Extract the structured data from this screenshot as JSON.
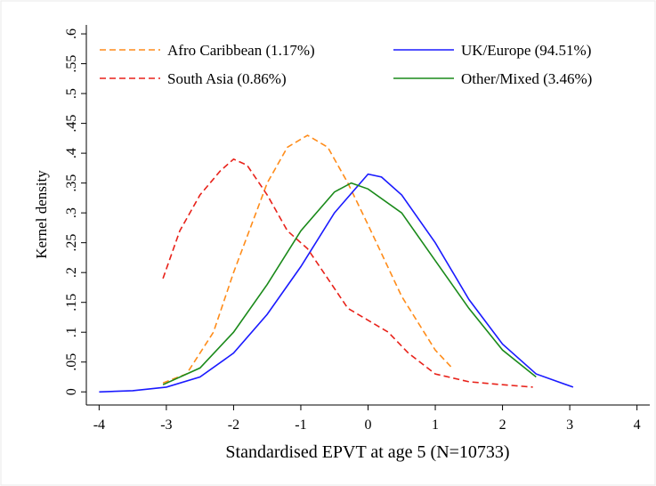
{
  "chart_data": {
    "type": "line",
    "xlabel": "Standardised EPVT at age 5 (N=10733)",
    "ylabel": "Kernel density",
    "xlim": [
      -4.19,
      4.19
    ],
    "ylim": [
      -0.022,
      0.615
    ],
    "xticks": [
      -4,
      -3,
      -2,
      -1,
      0,
      1,
      2,
      3,
      4
    ],
    "yticks": [
      0,
      {
        "value": 0.05,
        "label": ".05"
      },
      {
        "value": 0.1,
        "label": ".1"
      },
      {
        "value": 0.15,
        "label": ".15"
      },
      {
        "value": 0.2,
        "label": ".2"
      },
      {
        "value": 0.25,
        "label": ".25"
      },
      {
        "value": 0.3,
        "label": ".3"
      },
      {
        "value": 0.35,
        "label": ".35"
      },
      {
        "value": 0.4,
        "label": ".4"
      },
      {
        "value": 0.45,
        "label": ".45"
      },
      {
        "value": 0.5,
        "label": ".5"
      },
      {
        "value": 0.55,
        "label": ".55"
      },
      {
        "value": 0.6,
        "label": ".6"
      }
    ],
    "series": [
      {
        "name": "Afro Caribbean (1.17%)",
        "color": "#ff8c1a",
        "dashed": true,
        "x": [
          -3.05,
          -2.7,
          -2.3,
          -2,
          -1.5,
          -1.2,
          -0.9,
          -0.6,
          -0.3,
          0,
          0.5,
          1,
          1.25
        ],
        "values": [
          0.015,
          0.03,
          0.1,
          0.2,
          0.35,
          0.41,
          0.43,
          0.41,
          0.35,
          0.28,
          0.16,
          0.07,
          0.04
        ]
      },
      {
        "name": "UK/Europe (94.51%)",
        "color": "#1a1aff",
        "dashed": false,
        "x": [
          -4,
          -3.5,
          -3,
          -2.5,
          -2,
          -1.5,
          -1,
          -0.5,
          0,
          0.2,
          0.5,
          1,
          1.5,
          2,
          2.5,
          3.05
        ],
        "values": [
          0.0,
          0.002,
          0.008,
          0.025,
          0.065,
          0.13,
          0.21,
          0.3,
          0.365,
          0.36,
          0.33,
          0.25,
          0.155,
          0.08,
          0.03,
          0.008
        ]
      },
      {
        "name": "South Asia (0.86%)",
        "color": "#e8221a",
        "dashed": true,
        "x": [
          -3.05,
          -2.8,
          -2.5,
          -2.2,
          -2,
          -1.8,
          -1.5,
          -1.2,
          -0.9,
          -0.6,
          -0.3,
          0,
          0.3,
          0.6,
          1,
          1.5,
          2,
          2.45
        ],
        "values": [
          0.19,
          0.27,
          0.33,
          0.37,
          0.39,
          0.38,
          0.33,
          0.27,
          0.24,
          0.19,
          0.14,
          0.12,
          0.1,
          0.065,
          0.03,
          0.017,
          0.012,
          0.008
        ]
      },
      {
        "name": "Other/Mixed (3.46%)",
        "color": "#1a8a1a",
        "dashed": false,
        "x": [
          -3.05,
          -2.5,
          -2,
          -1.5,
          -1,
          -0.5,
          -0.25,
          0,
          0.5,
          1,
          1.5,
          2,
          2.5
        ],
        "values": [
          0.012,
          0.04,
          0.1,
          0.18,
          0.27,
          0.335,
          0.35,
          0.34,
          0.3,
          0.22,
          0.14,
          0.07,
          0.025
        ]
      }
    ]
  }
}
